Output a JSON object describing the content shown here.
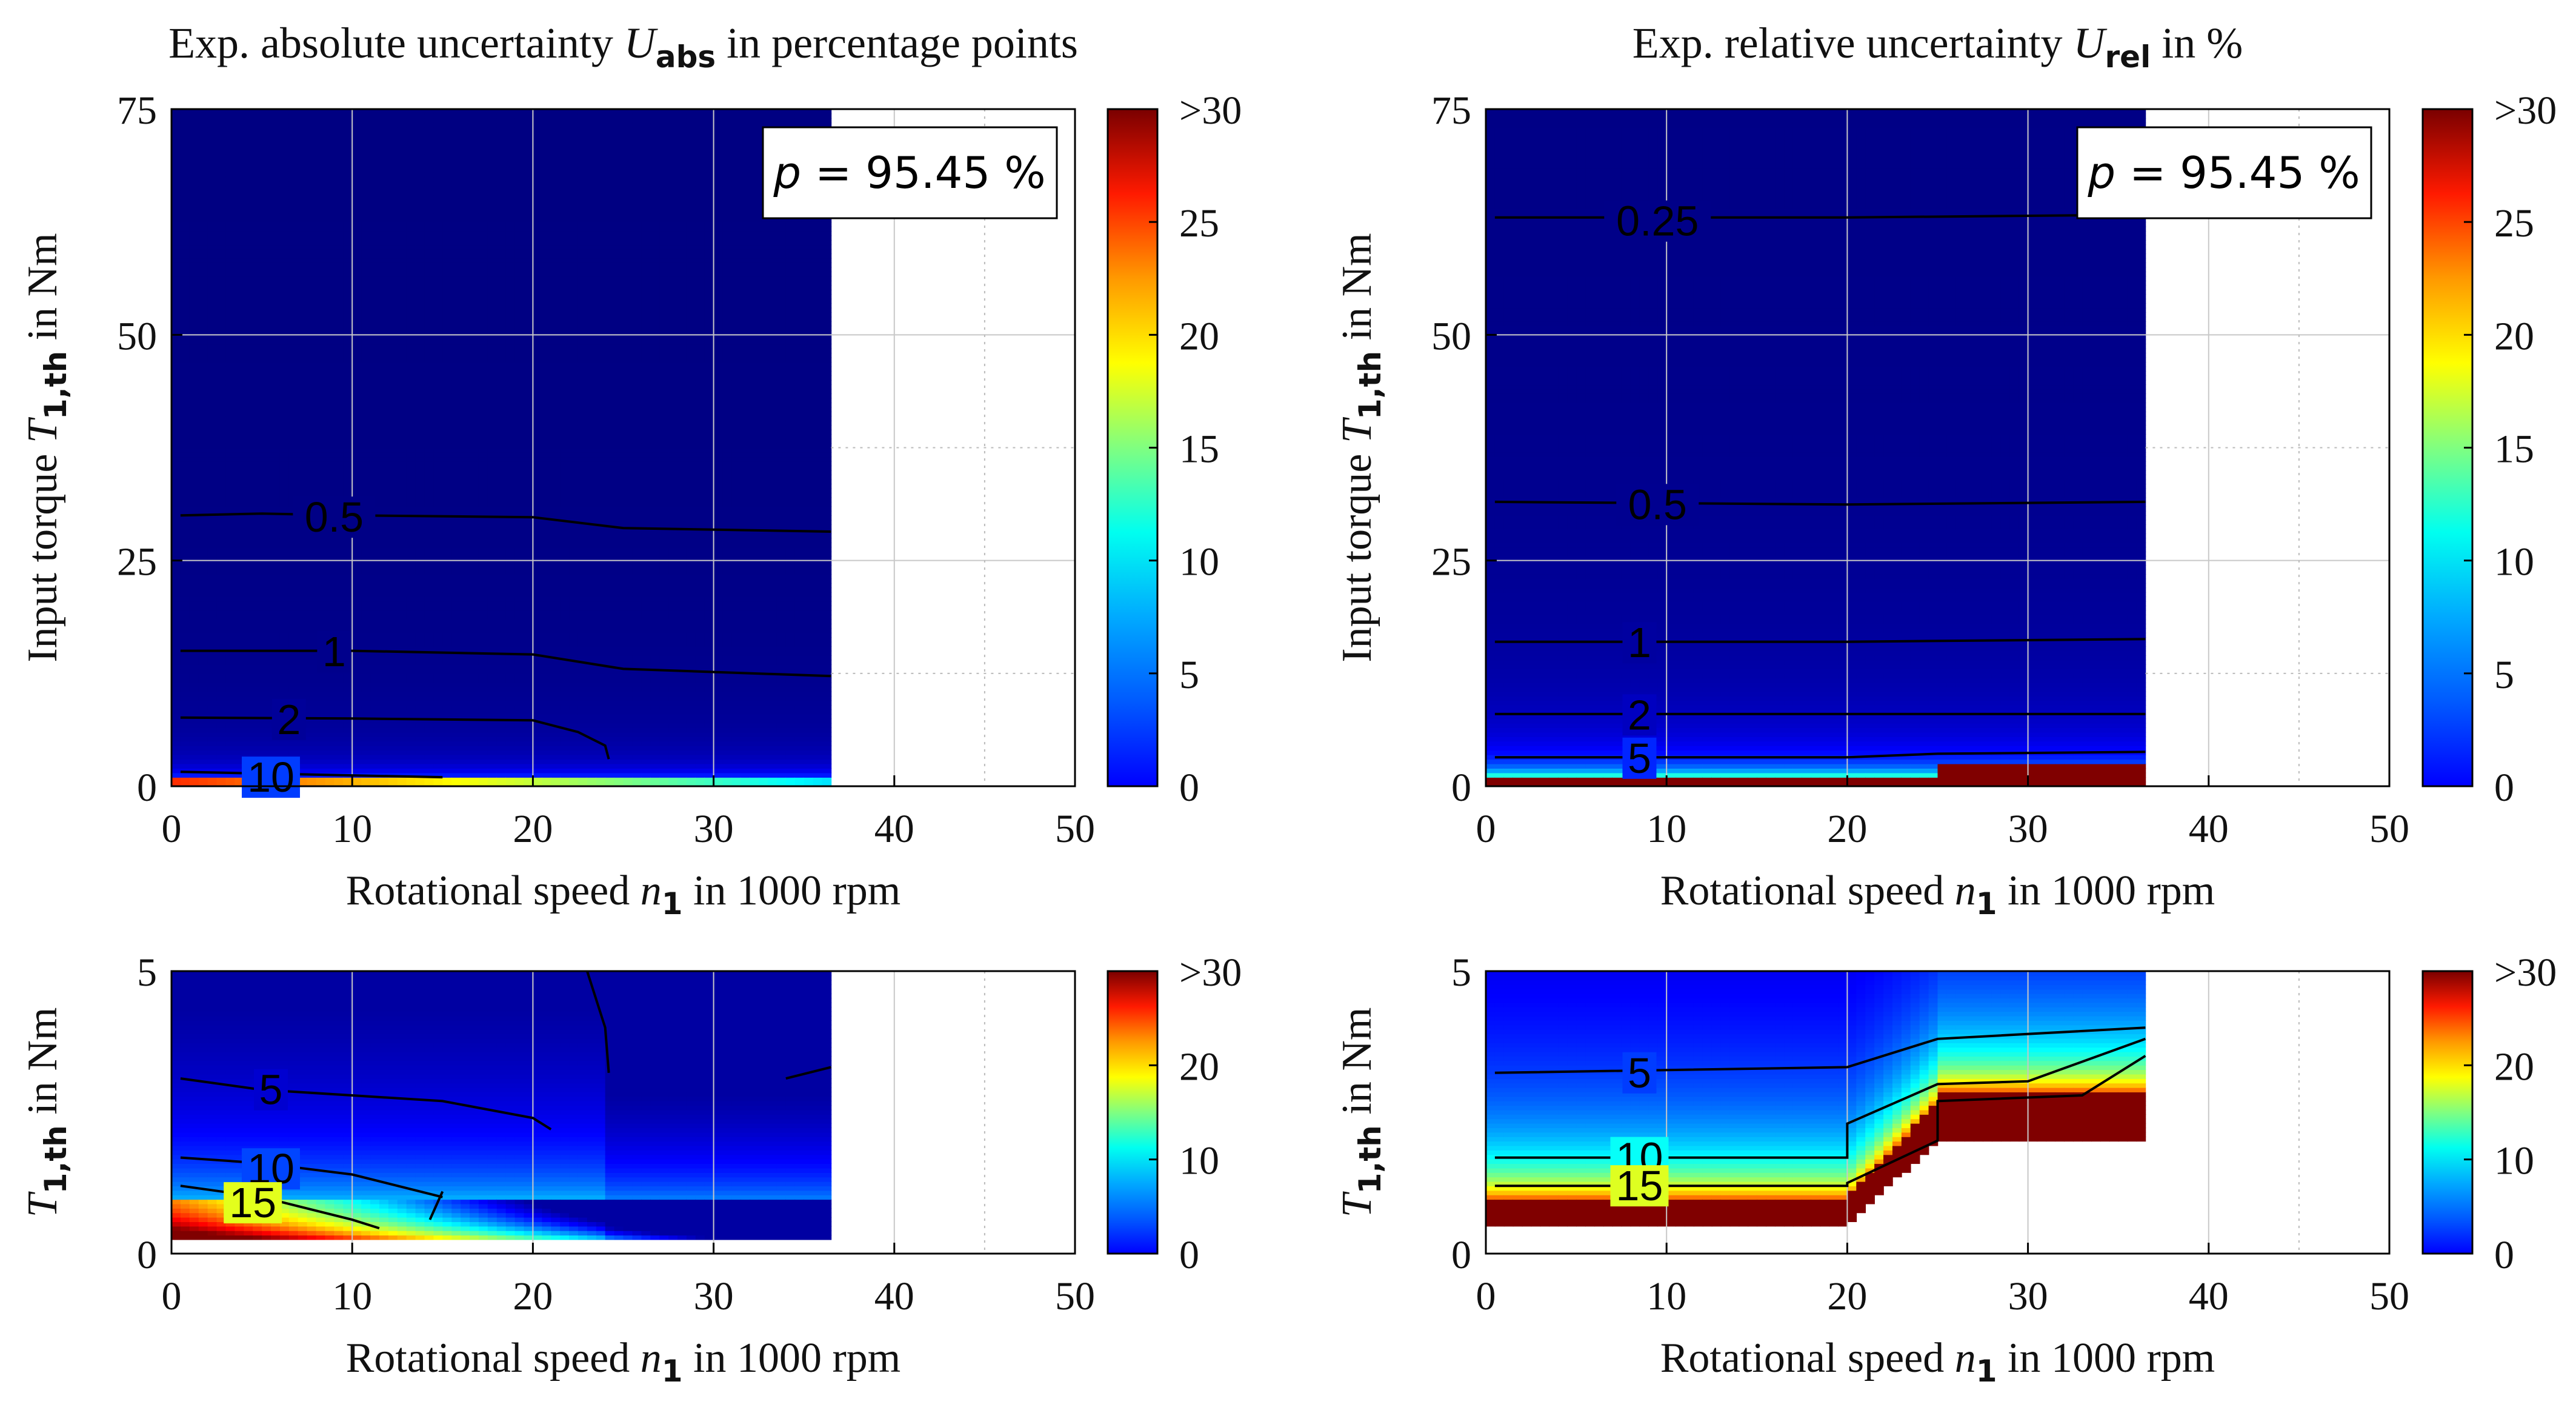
{
  "colorbar": {
    "tick_labels": [
      "0",
      "5",
      "10",
      "15",
      "20",
      "25",
      ">30"
    ],
    "tick_labels_short": [
      "0",
      "10",
      "20",
      ">30"
    ],
    "range": [
      0,
      30
    ],
    "colormap": "jet"
  },
  "xticks": [
    "0",
    "10",
    "20",
    "30",
    "40",
    "50"
  ],
  "annotation": {
    "text_var": "p",
    "text_value": "= 95.45 %"
  },
  "chart_data": [
    {
      "type": "heatmap",
      "panel": "top-left",
      "title_prefix": "Exp. absolute uncertainty",
      "title_symbol": "U",
      "title_sub": "abs",
      "title_suffix": "in percentage points",
      "xlabel_prefix": "Rotational speed",
      "xlabel_symbol": "n",
      "xlabel_sub": "1",
      "xlabel_suffix": "in 1000 rpm",
      "ylabel_prefix": "Input torque",
      "ylabel_symbol": "T",
      "ylabel_sub": "1,th",
      "ylabel_suffix": "in Nm",
      "xlim": [
        0,
        50
      ],
      "ylim": [
        0,
        75
      ],
      "yticks": [
        "0",
        "25",
        "50",
        "75"
      ],
      "data_extent_x": [
        0,
        36.5
      ],
      "contours": [
        {
          "level": "0.5",
          "points": [
            [
              0.5,
              30
            ],
            [
              5,
              30.2
            ],
            [
              10,
              30
            ],
            [
              20,
              29.8
            ],
            [
              25,
              28.6
            ],
            [
              36.5,
              28.2
            ]
          ],
          "label_at": [
            9,
            29.8
          ]
        },
        {
          "level": "1",
          "points": [
            [
              0.5,
              15
            ],
            [
              10,
              15
            ],
            [
              20,
              14.6
            ],
            [
              25,
              13
            ],
            [
              36.5,
              12.2
            ]
          ],
          "label_at": [
            9,
            14.9
          ]
        },
        {
          "level": "2",
          "points": [
            [
              0.5,
              7.6
            ],
            [
              10,
              7.5
            ],
            [
              20,
              7.3
            ],
            [
              22.5,
              6
            ],
            [
              24,
              4.5
            ],
            [
              24.2,
              3
            ]
          ],
          "label_at": [
            6.5,
            7.4
          ]
        },
        {
          "level": "10",
          "points": [
            [
              0.5,
              1.6
            ],
            [
              5,
              1.4
            ],
            [
              10,
              1.2
            ],
            [
              15,
              1
            ]
          ],
          "label_at": [
            5.5,
            1
          ]
        }
      ],
      "annotation": true
    },
    {
      "type": "heatmap",
      "panel": "top-right",
      "title_prefix": "Exp. relative uncertainty",
      "title_symbol": "U",
      "title_sub": "rel",
      "title_suffix": "in %",
      "xlabel_prefix": "Rotational speed",
      "xlabel_symbol": "n",
      "xlabel_sub": "1",
      "xlabel_suffix": "in 1000 rpm",
      "ylabel_prefix": "Input torque",
      "ylabel_symbol": "T",
      "ylabel_sub": "1,th",
      "ylabel_suffix": "in Nm",
      "xlim": [
        0,
        50
      ],
      "ylim": [
        0,
        75
      ],
      "yticks": [
        "0",
        "25",
        "50",
        "75"
      ],
      "data_extent_x": [
        0,
        36.5
      ],
      "contours": [
        {
          "level": "0.25",
          "points": [
            [
              0.5,
              63
            ],
            [
              20,
              63
            ],
            [
              36.5,
              63.3
            ]
          ],
          "label_at": [
            9.5,
            62.6
          ]
        },
        {
          "level": "0.5",
          "points": [
            [
              0.5,
              31.5
            ],
            [
              20,
              31.2
            ],
            [
              36.5,
              31.5
            ]
          ],
          "label_at": [
            9.5,
            31.2
          ]
        },
        {
          "level": "1",
          "points": [
            [
              0.5,
              16
            ],
            [
              20,
              16
            ],
            [
              36.5,
              16.3
            ]
          ],
          "label_at": [
            8.5,
            15.9
          ]
        },
        {
          "level": "2",
          "points": [
            [
              0.5,
              8
            ],
            [
              20,
              8
            ],
            [
              36.5,
              8
            ]
          ],
          "label_at": [
            8.5,
            7.9
          ]
        },
        {
          "level": "5",
          "points": [
            [
              0.5,
              3.2
            ],
            [
              20,
              3.2
            ],
            [
              25,
              3.6
            ],
            [
              36.5,
              3.8
            ]
          ],
          "label_at": [
            8.5,
            3.1
          ]
        }
      ],
      "annotation": true
    },
    {
      "type": "heatmap",
      "panel": "bottom-left",
      "xlabel_prefix": "Rotational speed",
      "xlabel_symbol": "n",
      "xlabel_sub": "1",
      "xlabel_suffix": "in 1000 rpm",
      "ylabel_symbol": "T",
      "ylabel_sub": "1,th",
      "ylabel_suffix": "in Nm",
      "xlim": [
        0,
        50
      ],
      "ylim": [
        0,
        5
      ],
      "yticks": [
        "0",
        "5"
      ],
      "data_extent_x": [
        0,
        36.5
      ],
      "contours": [
        {
          "level": "5",
          "points": [
            [
              0.5,
              3.1
            ],
            [
              5,
              2.9
            ],
            [
              10,
              2.8
            ],
            [
              15,
              2.7
            ],
            [
              20,
              2.4
            ],
            [
              21,
              2.2
            ]
          ],
          "label_at": [
            5.5,
            2.9
          ]
        },
        {
          "level": "10",
          "points": [
            [
              0.5,
              1.7
            ],
            [
              5,
              1.6
            ],
            [
              10,
              1.4
            ],
            [
              15,
              1
            ]
          ],
          "label_at": [
            5.5,
            1.5
          ]
        },
        {
          "level": "15",
          "points": [
            [
              0.5,
              1.2
            ],
            [
              5,
              1
            ],
            [
              10,
              0.6
            ],
            [
              11.5,
              0.45
            ]
          ],
          "label_at": [
            4.5,
            0.9
          ]
        },
        {
          "level": "",
          "points": [
            [
              23,
              5
            ],
            [
              24,
              4
            ],
            [
              24.2,
              3.2
            ]
          ],
          "label_at": null
        },
        {
          "level": "",
          "points": [
            [
              34,
              3.1
            ],
            [
              36.5,
              3.3
            ]
          ],
          "label_at": null
        },
        {
          "level": "",
          "points": [
            [
              15,
              1.1
            ],
            [
              14.3,
              0.6
            ]
          ],
          "label_at": null
        }
      ],
      "annotation": false
    },
    {
      "type": "heatmap",
      "panel": "bottom-right",
      "xlabel_prefix": "Rotational speed",
      "xlabel_symbol": "n",
      "xlabel_sub": "1",
      "xlabel_suffix": "in 1000 rpm",
      "ylabel_symbol": "T",
      "ylabel_sub": "1,th",
      "ylabel_suffix": "in Nm",
      "xlim": [
        0,
        50
      ],
      "ylim": [
        0,
        5
      ],
      "yticks": [
        "0",
        "5"
      ],
      "data_extent_x": [
        0,
        36.5
      ],
      "contours": [
        {
          "level": "5",
          "points": [
            [
              0.5,
              3.2
            ],
            [
              20,
              3.3
            ],
            [
              25,
              3.8
            ],
            [
              36.5,
              4
            ]
          ],
          "label_at": [
            8.5,
            3.2
          ]
        },
        {
          "level": "10",
          "points": [
            [
              0.5,
              1.7
            ],
            [
              20,
              1.7
            ],
            [
              20,
              2.3
            ],
            [
              25,
              3
            ],
            [
              30,
              3.05
            ],
            [
              36.5,
              3.8
            ]
          ],
          "label_at": [
            8.5,
            1.7
          ]
        },
        {
          "level": "15",
          "points": [
            [
              0.5,
              1.2
            ],
            [
              20,
              1.2
            ],
            [
              20,
              1.25
            ],
            [
              25,
              2
            ],
            [
              25,
              2.7
            ],
            [
              33,
              2.8
            ],
            [
              36.5,
              3.5
            ]
          ],
          "label_at": [
            8.5,
            1.2
          ]
        }
      ],
      "annotation": false
    }
  ]
}
